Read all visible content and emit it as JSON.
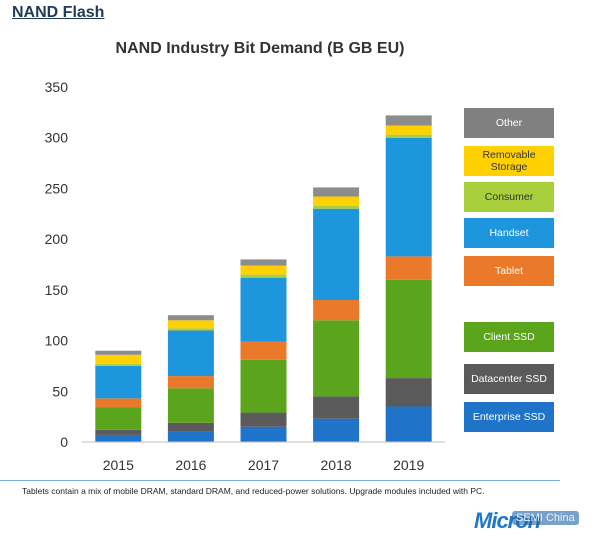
{
  "header": {
    "title": "NAND Flash"
  },
  "chart_data": {
    "type": "bar",
    "stacked": true,
    "title": "NAND Industry Bit Demand  (B GB EU)",
    "xlabel": "",
    "ylabel": "",
    "categories": [
      "2015",
      "2016",
      "2017",
      "2018",
      "2019"
    ],
    "ylim": [
      0,
      350
    ],
    "yticks": [
      0,
      50,
      100,
      150,
      200,
      250,
      300,
      350
    ],
    "grid": false,
    "legend_position": "right",
    "series": [
      {
        "name": "Enterprise SSD",
        "color": "#1f74c9",
        "values": [
          7,
          10,
          15,
          23,
          35
        ]
      },
      {
        "name": "Datacenter SSD",
        "color": "#5a5a5a",
        "values": [
          5,
          9,
          14,
          22,
          28
        ]
      },
      {
        "name": "Client SSD",
        "color": "#5aa51c",
        "values": [
          22,
          34,
          52,
          75,
          97
        ]
      },
      {
        "name": "Tablet",
        "color": "#ea7a2a",
        "values": [
          9,
          12,
          18,
          20,
          23
        ]
      },
      {
        "name": "Handset",
        "color": "#1e96dd",
        "values": [
          32,
          45,
          63,
          90,
          117
        ]
      },
      {
        "name": "Consumer",
        "color": "#a8cf3c",
        "values": [
          2,
          2,
          3,
          3,
          3
        ]
      },
      {
        "name": "Removable Storage",
        "color": "#ffd100",
        "values": [
          9,
          8,
          9,
          9,
          9
        ]
      },
      {
        "name": "Other",
        "color": "#8c8c8c",
        "values": [
          4,
          5,
          6,
          9,
          10
        ]
      }
    ]
  },
  "legend": [
    {
      "label": "Other",
      "color": "#808080",
      "text_color": "#ffffff"
    },
    {
      "label": "Removable Storage",
      "color": "#ffd100",
      "text_color": "#333333"
    },
    {
      "label": "Consumer",
      "color": "#a8cf3c",
      "text_color": "#333333"
    },
    {
      "label": "Handset",
      "color": "#1e96dd",
      "text_color": "#ffffff"
    },
    {
      "label": "Tablet",
      "color": "#ea7a2a",
      "text_color": "#ffffff"
    },
    {
      "label": "Client SSD",
      "color": "#5aa51c",
      "text_color": "#ffffff"
    },
    {
      "label": "Datacenter SSD",
      "color": "#5a5a5a",
      "text_color": "#ffffff"
    },
    {
      "label": "Enterprise SSD",
      "color": "#1f74c9",
      "text_color": "#ffffff"
    }
  ],
  "footnote": "Tablets contain a mix of mobile DRAM, standard DRAM, and reduced-power solutions.  Upgrade modules included with PC.",
  "logo": {
    "text": "Micron"
  },
  "watermark": {
    "text": "SEMI China"
  }
}
